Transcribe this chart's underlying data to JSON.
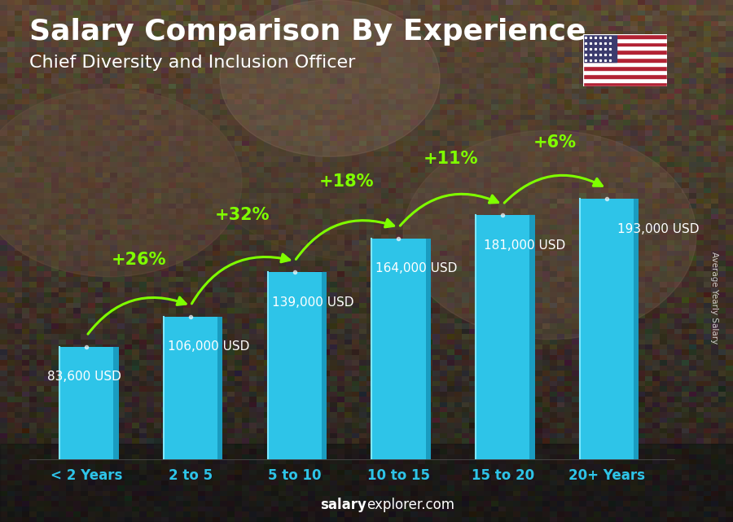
{
  "categories": [
    "< 2 Years",
    "2 to 5",
    "5 to 10",
    "10 to 15",
    "15 to 20",
    "20+ Years"
  ],
  "values": [
    83600,
    106000,
    139000,
    164000,
    181000,
    193000
  ],
  "labels": [
    "83,600 USD",
    "106,000 USD",
    "139,000 USD",
    "164,000 USD",
    "181,000 USD",
    "193,000 USD"
  ],
  "pct_labels": [
    "+26%",
    "+32%",
    "+18%",
    "+11%",
    "+6%"
  ],
  "bar_color_main": "#2ec4e8",
  "bar_color_light": "#5dd8f5",
  "bar_color_dark": "#1a9cc0",
  "bar_color_top": "#7ee8ff",
  "bg_color": "#2a2a2a",
  "overlay_color": "#3a2a20",
  "title": "Salary Comparison By Experience",
  "subtitle": "Chief Diversity and Inclusion Officer",
  "ylabel_side": "Average Yearly Salary",
  "title_color": "#ffffff",
  "subtitle_color": "#ffffff",
  "label_color": "#ffffff",
  "pct_color": "#7fff00",
  "cat_color": "#2ec4e8",
  "footer_color": "#ffffff",
  "ylim": [
    0,
    240000
  ],
  "bar_width": 0.52,
  "label_fontsize": 11,
  "pct_fontsize": 15,
  "title_fontsize": 26,
  "subtitle_fontsize": 16,
  "cat_fontsize": 12,
  "arrow_color": "#7fff00",
  "label_positions": [
    "left",
    "left",
    "left",
    "left",
    "left",
    "right"
  ]
}
